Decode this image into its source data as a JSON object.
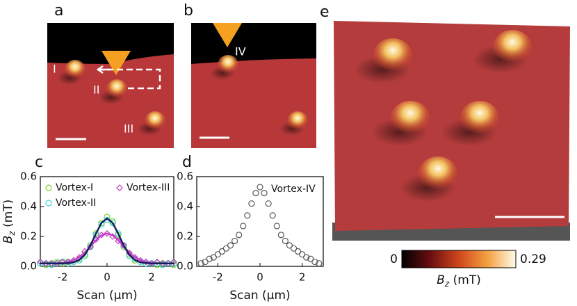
{
  "panels": {
    "a": "a",
    "b": "b",
    "c": "c",
    "d": "d",
    "e": "e"
  },
  "image_labels": {
    "I": "I",
    "II": "II",
    "III": "III",
    "IV": "IV"
  },
  "colorbar": {
    "min": 0,
    "max": 0.29,
    "label": {
      "symbol": "B",
      "subscript": "z",
      "unit": " (mT)"
    }
  },
  "chart_data": [
    {
      "type": "line",
      "xlabel": "Scan (μm)",
      "ylabel": {
        "symbol": "B",
        "subscript": "z",
        "unit": " (mT)"
      },
      "xlim": [
        -3,
        3
      ],
      "ylim": [
        0,
        0.6
      ],
      "xticks": [
        -2,
        0,
        2
      ],
      "yticks": [
        {
          "value": 0,
          "label": "0.0"
        },
        0.2,
        0.4,
        0.6
      ],
      "x": [
        -3,
        -2.75,
        -2.5,
        -2.25,
        -2,
        -1.75,
        -1.5,
        -1.25,
        -1,
        -0.75,
        -0.5,
        -0.25,
        0,
        0.25,
        0.5,
        0.75,
        1,
        1.25,
        1.5,
        1.75,
        2,
        2.25,
        2.5,
        2.75,
        3
      ],
      "series": [
        {
          "name": "Vortex-I",
          "color": "#7fd12a",
          "marker": "circle",
          "values": [
            0.02,
            0.01,
            0.02,
            0.03,
            0.02,
            0.03,
            0.03,
            0.05,
            0.08,
            0.14,
            0.22,
            0.29,
            0.33,
            0.3,
            0.21,
            0.13,
            0.08,
            0.04,
            0.03,
            0.02,
            0.02,
            0.01,
            0.02,
            0.02,
            0.01
          ]
        },
        {
          "name": "Vortex-II",
          "color": "#3fd6d6",
          "marker": "circle",
          "values": [
            0.02,
            0.02,
            0.01,
            0.02,
            0.03,
            0.02,
            0.03,
            0.04,
            0.07,
            0.13,
            0.21,
            0.28,
            0.31,
            0.29,
            0.22,
            0.14,
            0.07,
            0.05,
            0.03,
            0.02,
            0.02,
            0.02,
            0.01,
            0.02,
            0.02
          ]
        },
        {
          "name": "Vortex-III",
          "color": "#c040c0",
          "marker": "diamond",
          "values": [
            0.03,
            0.02,
            0.02,
            0.02,
            0.03,
            0.03,
            0.04,
            0.06,
            0.1,
            0.13,
            0.18,
            0.21,
            0.22,
            0.2,
            0.17,
            0.14,
            0.09,
            0.06,
            0.04,
            0.03,
            0.02,
            0.03,
            0.02,
            0.02,
            0.03
          ]
        },
        {
          "color": "#d23ad2",
          "values": [
            0.02,
            0.02,
            0.02,
            0.021,
            0.023,
            0.029,
            0.04,
            0.061,
            0.092,
            0.133,
            0.175,
            0.208,
            0.22,
            0.208,
            0.175,
            0.133,
            0.092,
            0.061,
            0.04,
            0.029,
            0.023,
            0.021,
            0.02,
            0.02,
            0.02
          ]
        },
        {
          "color": "#12205e",
          "values": [
            0.02,
            0.02,
            0.02,
            0.02,
            0.02,
            0.022,
            0.027,
            0.043,
            0.077,
            0.139,
            0.219,
            0.291,
            0.32,
            0.291,
            0.219,
            0.139,
            0.077,
            0.043,
            0.027,
            0.022,
            0.02,
            0.02,
            0.02,
            0.02,
            0.02
          ]
        }
      ]
    },
    {
      "type": "scatter",
      "xlabel": "Scan (μm)",
      "xlim": [
        -3,
        3
      ],
      "ylim": [
        0,
        0.6
      ],
      "xticks": [
        -2,
        0,
        2
      ],
      "yticks": [
        {
          "value": 0,
          "label": "0.0"
        },
        0.2,
        0.4,
        0.6
      ],
      "x": [
        -2.8,
        -2.6,
        -2.4,
        -2.2,
        -2,
        -1.8,
        -1.6,
        -1.4,
        -1.2,
        -1,
        -0.8,
        -0.6,
        -0.4,
        -0.2,
        0,
        0.2,
        0.4,
        0.6,
        0.8,
        1,
        1.2,
        1.4,
        1.6,
        1.8,
        2,
        2.2,
        2.4,
        2.6,
        2.8
      ],
      "series": [
        {
          "name": "Vortex-IV",
          "color": "#555555",
          "marker": "circle",
          "values": [
            0.02,
            0.03,
            0.05,
            0.06,
            0.08,
            0.1,
            0.12,
            0.14,
            0.17,
            0.21,
            0.27,
            0.34,
            0.42,
            0.49,
            0.53,
            0.49,
            0.42,
            0.34,
            0.27,
            0.21,
            0.17,
            0.14,
            0.12,
            0.1,
            0.08,
            0.06,
            0.05,
            0.03,
            0.02
          ]
        }
      ]
    }
  ]
}
